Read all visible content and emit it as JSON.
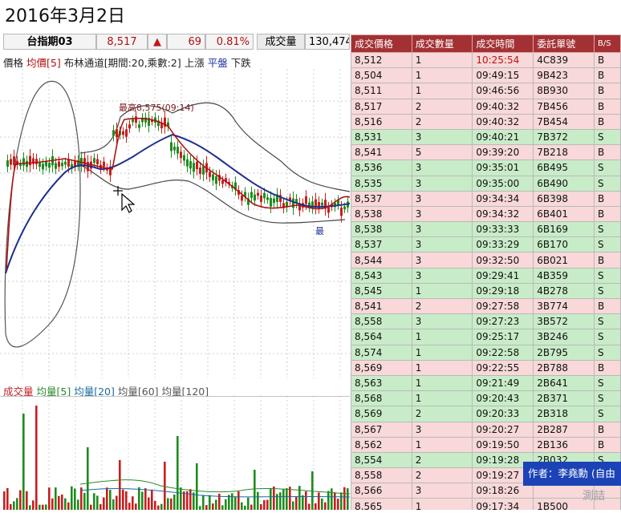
{
  "page": {
    "date_title": "2016年3月2日"
  },
  "quote": {
    "name": "台指期03",
    "price": "8,517",
    "arrow": "▲",
    "change": "69",
    "pct": "0.81%",
    "volume_label": "成交量",
    "volume_value": "130,474"
  },
  "indicator": {
    "price_label": "價格",
    "ma_label": "均價[5]",
    "boll_label": "布林通道[期間:20,乘數:2]",
    "upper_label": "上漲",
    "flat_label": "平盤",
    "down_label": "下跌"
  },
  "chart_annotations": {
    "high": "最高8,575(09:14)",
    "low_prefix": "最"
  },
  "volume_panel": {
    "vol_label": "成交量",
    "ma5": "均量[5]",
    "ma20": "均量[20]",
    "ma60": "均量[60]",
    "ma120": "均量[120]"
  },
  "trades": {
    "headers": [
      "成交價格",
      "成交數量",
      "成交時間",
      "委託單號",
      "B/S"
    ],
    "rows": [
      [
        "8,512",
        "1",
        "10:25:54",
        "4C839",
        "B"
      ],
      [
        "8,504",
        "1",
        "09:49:15",
        "9B423",
        "B"
      ],
      [
        "8,511",
        "1",
        "09:46:56",
        "8B930",
        "B"
      ],
      [
        "8,517",
        "2",
        "09:40:32",
        "7B456",
        "B"
      ],
      [
        "8,516",
        "2",
        "09:40:32",
        "7B454",
        "B"
      ],
      [
        "8,531",
        "3",
        "09:40:21",
        "7B372",
        "S"
      ],
      [
        "8,541",
        "5",
        "09:39:20",
        "7B218",
        "B"
      ],
      [
        "8,536",
        "3",
        "09:35:01",
        "6B495",
        "S"
      ],
      [
        "8,535",
        "3",
        "09:35:00",
        "6B490",
        "S"
      ],
      [
        "8,537",
        "3",
        "09:34:34",
        "6B398",
        "B"
      ],
      [
        "8,538",
        "3",
        "09:34:32",
        "6B401",
        "B"
      ],
      [
        "8,538",
        "3",
        "09:33:33",
        "6B169",
        "S"
      ],
      [
        "8,537",
        "3",
        "09:33:29",
        "6B170",
        "S"
      ],
      [
        "8,544",
        "3",
        "09:32:50",
        "6B021",
        "B"
      ],
      [
        "8,543",
        "3",
        "09:29:41",
        "4B359",
        "S"
      ],
      [
        "8,545",
        "1",
        "09:29:18",
        "4B278",
        "S"
      ],
      [
        "8,541",
        "2",
        "09:27:58",
        "3B774",
        "B"
      ],
      [
        "8,558",
        "3",
        "09:27:23",
        "3B572",
        "S"
      ],
      [
        "8,564",
        "1",
        "09:25:17",
        "3B246",
        "S"
      ],
      [
        "8,574",
        "1",
        "09:22:58",
        "2B795",
        "S"
      ],
      [
        "8,569",
        "1",
        "09:22:55",
        "2B788",
        "B"
      ],
      [
        "8,563",
        "1",
        "09:21:49",
        "2B641",
        "S"
      ],
      [
        "8,568",
        "1",
        "09:20:43",
        "2B371",
        "S"
      ],
      [
        "8,569",
        "2",
        "09:20:33",
        "2B318",
        "S"
      ],
      [
        "8,567",
        "3",
        "09:20:27",
        "2B287",
        "B"
      ],
      [
        "8,562",
        "1",
        "09:19:50",
        "2B136",
        "B"
      ],
      [
        "8,554",
        "2",
        "09:19:28",
        "2B032",
        "S"
      ],
      [
        "8,558",
        "2",
        "09:19:27",
        "",
        ""
      ],
      [
        "8,566",
        "3",
        "09:18:26",
        "",
        ""
      ],
      [
        "8,565",
        "1",
        "09:17:34",
        "1B500",
        ""
      ]
    ]
  },
  "watermark": {
    "author": "作者：李堯勳 (自由",
    "sub": "測詰"
  },
  "colors": {
    "header_bg": "#a33134",
    "buy_row": "#f8d8d8",
    "sell_row": "#c8ecc8",
    "up_candle": "#c81e1e",
    "down_candle": "#1e8c1e",
    "ma_line": "#1f2f8c",
    "bollinger": "#555555"
  }
}
